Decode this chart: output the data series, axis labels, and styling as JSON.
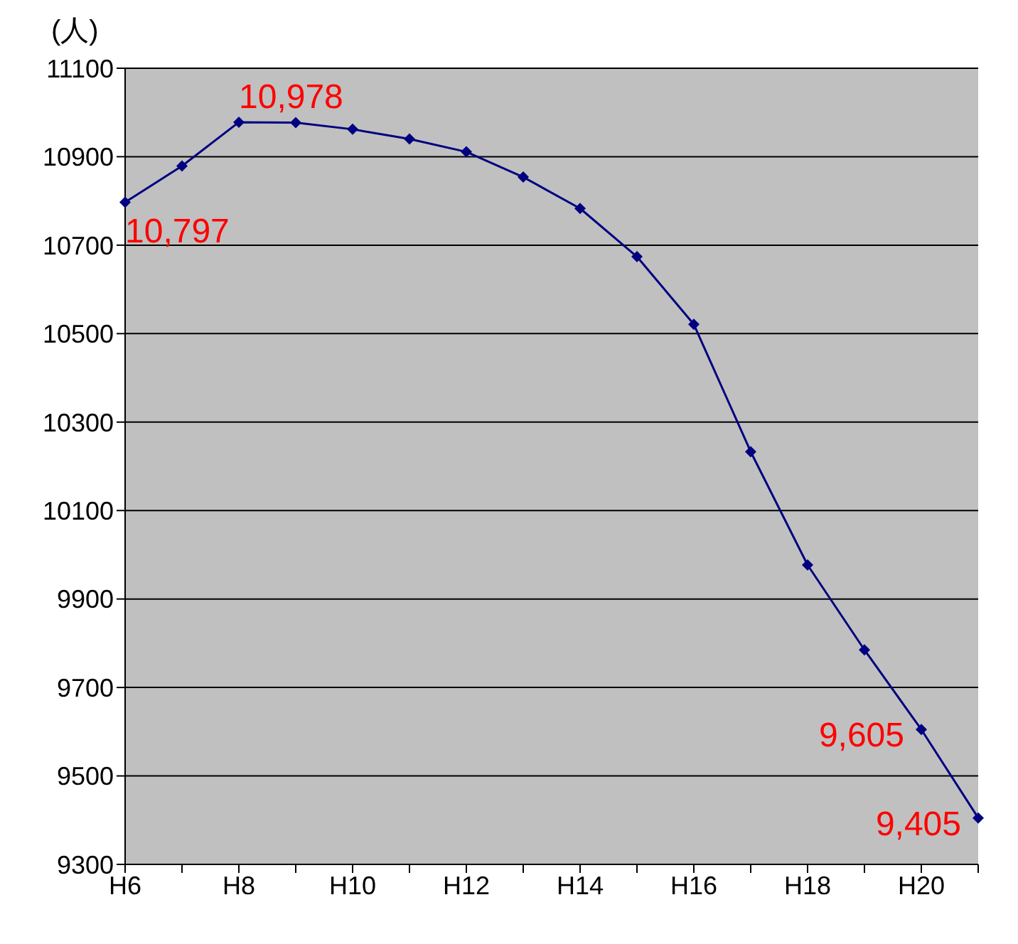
{
  "chart_data": {
    "type": "line",
    "ylabel": "(人)",
    "categories": [
      "H6",
      null,
      "H8",
      null,
      "H10",
      null,
      "H12",
      null,
      "H14",
      null,
      "H16",
      null,
      "H18",
      null,
      "H20",
      null
    ],
    "series": [
      {
        "color": "#000080",
        "values": [
          10797,
          10879,
          10978,
          10977,
          10962,
          10940,
          10911,
          10854,
          10783,
          10674,
          10521,
          10233,
          9977,
          9785,
          9605,
          9405
        ],
        "value_labels": [
          "10,797",
          null,
          "10,978",
          null,
          null,
          null,
          null,
          null,
          null,
          null,
          null,
          null,
          null,
          null,
          "9,605",
          "9,405"
        ]
      }
    ],
    "ylim": [
      9300,
      11100
    ],
    "yticks": [
      9300,
      9500,
      9700,
      9900,
      10100,
      10300,
      10500,
      10700,
      10900,
      11100
    ],
    "grid": "y",
    "marker": "diamond",
    "line_style": "solid"
  }
}
